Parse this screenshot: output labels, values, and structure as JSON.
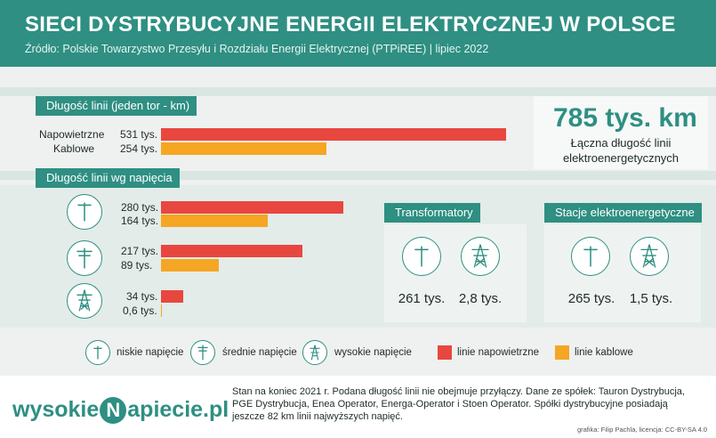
{
  "header": {
    "title": "SIECI DYSTRYBUCYJNE ENERGII ELEKTRYCZNEJ W POLSCE",
    "subtitle": "Źródło: Polskie Towarzystwo Przesyłu i Rozdziału Energii Elektrycznej (PTPiREE) | lipiec 2022"
  },
  "colors": {
    "accent": "#2e8f82",
    "overhead": "#e8473f",
    "cable": "#f5a623"
  },
  "chart_data": [
    {
      "type": "bar",
      "title": "Długość linii (jeden tor - km)",
      "categories": [
        "Napowietrzne",
        "Kablowe"
      ],
      "values": [
        531,
        254
      ],
      "value_labels": [
        "531 tys.",
        "254 tys."
      ],
      "unit": "tys. km",
      "xlim": [
        0,
        560
      ]
    },
    {
      "type": "bar",
      "title": "Długość linii wg napięcia",
      "categories": [
        "niskie napięcie",
        "średnie napięcie",
        "wysokie napięcie"
      ],
      "series": [
        {
          "name": "linie napowietrzne",
          "values": [
            280,
            217,
            34
          ],
          "labels": [
            "280 tys.",
            "217 tys.",
            "34 tys."
          ]
        },
        {
          "name": "linie kablowe",
          "values": [
            164,
            89,
            0.6
          ],
          "labels": [
            "164 tys.",
            "89 tys.",
            "0,6 tys."
          ]
        }
      ],
      "xlim": [
        0,
        560
      ]
    }
  ],
  "total": {
    "value": "785 tys. km",
    "caption": "Łączna długość linii elektroenergetycznych"
  },
  "transformers": {
    "title": "Transformatory",
    "low": "261 tys.",
    "high": "2,8 tys."
  },
  "stations": {
    "title": "Stacje elektroenergetyczne",
    "low": "265 tys.",
    "high": "1,5 tys."
  },
  "legend": {
    "low": "niskie napięcie",
    "medium": "średnie napięcie",
    "high": "wysokie napięcie",
    "overhead": "linie napowietrzne",
    "cable": "linie kablowe"
  },
  "footer": {
    "logo_left": "wysokie",
    "logo_n": "N",
    "logo_right": "apiecie.pl",
    "note": "Stan na koniec 2021 r. Podana długość linii nie obejmuje przyłączy. Dane ze spółek: Tauron Dystrybucja, PGE Dystrybucja, Enea Operator, Energa-Operator i Stoen Operator. Spółki dystrybucyjne posiadają jeszcze 82 km linii najwyższych napięć.",
    "credit": "grafika: Filip Pachla, licencja: CC-BY-SA 4.0"
  }
}
